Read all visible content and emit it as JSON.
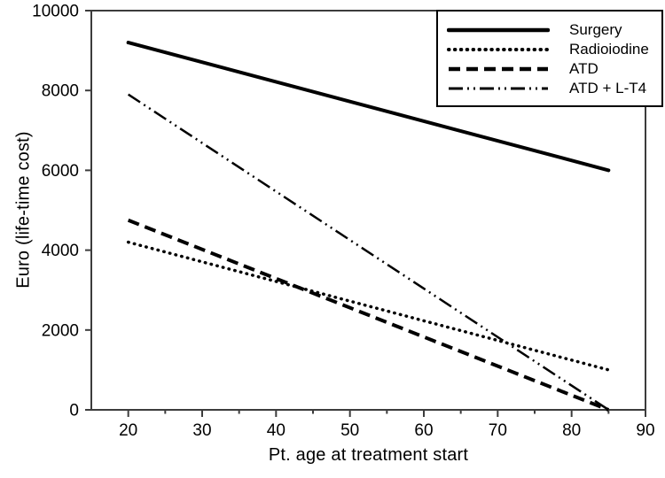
{
  "chart_data": {
    "type": "line",
    "title": "",
    "xlabel": "Pt. age at treatment start",
    "ylabel": "Euro (life-time cost)",
    "xlim": [
      15,
      90
    ],
    "ylim": [
      0,
      10000
    ],
    "x_major_ticks": [
      20,
      30,
      40,
      50,
      60,
      70,
      80,
      90
    ],
    "x_minor_ticks": [
      25,
      35,
      45,
      55,
      65,
      75,
      85
    ],
    "y_major_ticks": [
      0,
      2000,
      4000,
      6000,
      8000,
      10000
    ],
    "grid": false,
    "legend_position": "top-right-inside",
    "line_color": "#000000",
    "axis_color": "#3c3c3c",
    "series": [
      {
        "name": "Surgery",
        "line_style": "solid",
        "x": [
          20,
          85
        ],
        "values": [
          9200,
          6000
        ]
      },
      {
        "name": "Radioiodine",
        "line_style": "dotted",
        "x": [
          20,
          85
        ],
        "values": [
          4200,
          1000
        ]
      },
      {
        "name": "ATD",
        "line_style": "dashed",
        "x": [
          20,
          85
        ],
        "values": [
          4750,
          0
        ]
      },
      {
        "name": "ATD + L-T4",
        "line_style": "dash-dot-dot",
        "x": [
          20,
          85
        ],
        "values": [
          7900,
          0
        ]
      }
    ]
  }
}
